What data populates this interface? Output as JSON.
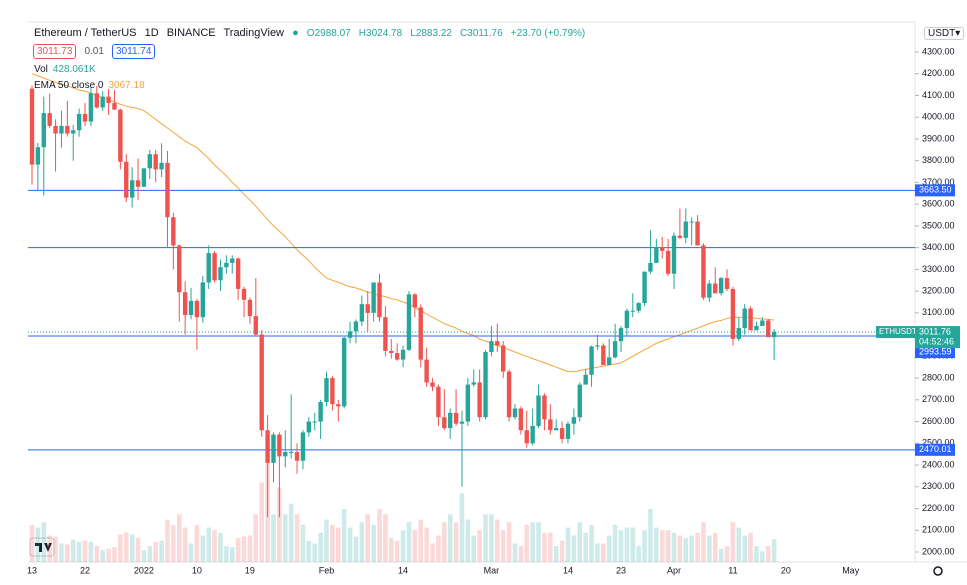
{
  "header": {
    "symbol": "Ethereum / TetherUS",
    "interval": "1D",
    "exchange": "BINANCE",
    "source": "TradingView",
    "ohlc_labels": [
      "O",
      "H",
      "L",
      "C"
    ],
    "change": "+23.70 (+0.79%)",
    "bid": "3011.73",
    "spread": "0.01",
    "ask": "3011.74",
    "volume_label": "Vol",
    "volume_value_label": "428.061K",
    "currency": "USDT"
  },
  "chart_data": {
    "type": "candlestick",
    "categories": [
      "13",
      null,
      null,
      null,
      null,
      null,
      null,
      null,
      null,
      "22",
      null,
      null,
      null,
      null,
      null,
      null,
      null,
      null,
      null,
      "2022",
      null,
      null,
      null,
      null,
      null,
      null,
      null,
      null,
      "10",
      null,
      null,
      null,
      null,
      null,
      null,
      null,
      null,
      "19",
      null,
      null,
      null,
      null,
      null,
      null,
      null,
      null,
      null,
      null,
      null,
      null,
      "Feb",
      null,
      null,
      null,
      null,
      null,
      null,
      null,
      null,
      null,
      null,
      null,
      null,
      "14",
      null,
      null,
      null,
      null,
      null,
      null,
      null,
      null,
      null,
      null,
      null,
      null,
      null,
      null,
      "Mar",
      null,
      null,
      null,
      null,
      null,
      null,
      null,
      null,
      null,
      null,
      null,
      null,
      "14",
      null,
      null,
      null,
      null,
      null,
      null,
      null,
      null,
      "23",
      null,
      null,
      null,
      null,
      null,
      null,
      null,
      null,
      "Apr",
      null,
      null,
      null,
      null,
      null,
      null,
      null,
      null,
      null,
      "11",
      null,
      null,
      null,
      null,
      null,
      null,
      null,
      null,
      "20",
      null,
      null,
      null,
      null,
      null,
      null,
      null,
      null,
      null,
      null,
      "May"
    ],
    "open": [
      4131,
      3782,
      3862,
      4019,
      3960,
      3925,
      3960,
      3925,
      3940,
      4015,
      3980,
      4110,
      4045,
      4095,
      4065,
      4035,
      3795,
      3630,
      3710,
      3680,
      3765,
      3830,
      3760,
      3790,
      3540,
      3410,
      3195,
      3090,
      3155,
      3080,
      3240,
      3375,
      3250,
      3310,
      3330,
      3350,
      3210,
      3160,
      3085,
      3000,
      2560,
      2410,
      2540,
      2440,
      2460,
      2460,
      2420,
      2550,
      2600,
      2600,
      2690,
      2800,
      2680,
      2670,
      2985,
      3015,
      3060,
      3140,
      3100,
      3240,
      3080,
      2925,
      2915,
      2885,
      2930,
      3185,
      3125,
      2885,
      2780,
      2760,
      2620,
      2570,
      2640,
      2590,
      2600,
      2770,
      2780,
      2620,
      2920,
      2970,
      2950,
      2830,
      2620,
      2660,
      2560,
      2500,
      2580,
      2720,
      2610,
      2560,
      2570,
      2520,
      2590,
      2620,
      2770,
      2815,
      2945,
      2950,
      2860,
      2895,
      2970,
      3030,
      3110,
      3110,
      3145,
      3290,
      3330,
      3400,
      3385,
      3280,
      3455,
      3445,
      3520,
      3520,
      3410,
      3170,
      3235,
      3190,
      3260,
      3210,
      2980,
      3030,
      3120,
      3020,
      3040,
      3065,
      2988.07,
      null,
      null,
      null,
      null,
      null,
      null,
      null,
      null,
      null,
      null,
      null,
      null,
      null
    ],
    "high": [
      4146,
      3882,
      4095,
      4109,
      3990,
      4030,
      4075,
      3965,
      4040,
      4065,
      4140,
      4145,
      4120,
      4130,
      4125,
      4040,
      3830,
      3770,
      3810,
      3760,
      3850,
      3850,
      3880,
      3845,
      3560,
      3415,
      3245,
      3215,
      3165,
      3270,
      3410,
      3385,
      3345,
      3365,
      3365,
      3355,
      3220,
      3170,
      3260,
      3020,
      2630,
      2550,
      2550,
      2560,
      2725,
      2500,
      2560,
      2620,
      2640,
      2700,
      2830,
      2810,
      2700,
      2990,
      3060,
      3070,
      3180,
      3200,
      3240,
      3280,
      3130,
      2980,
      2960,
      2950,
      3200,
      3190,
      3140,
      2940,
      2800,
      2770,
      2750,
      2660,
      2750,
      2650,
      2800,
      2840,
      2840,
      2930,
      3040,
      3050,
      2970,
      2840,
      2680,
      2670,
      2650,
      2660,
      2770,
      2730,
      2680,
      2610,
      2600,
      2600,
      2660,
      2780,
      2840,
      2950,
      3000,
      2960,
      2980,
      3050,
      3040,
      3120,
      3190,
      3150,
      3290,
      3480,
      3440,
      3450,
      3440,
      3470,
      3580,
      3580,
      3540,
      3550,
      3420,
      3250,
      3310,
      3265,
      3300,
      3220,
      3080,
      3140,
      3130,
      3060,
      3080,
      3070,
      3024.78,
      null,
      null,
      null,
      null,
      null,
      null,
      null,
      null,
      null,
      null,
      null,
      null,
      null
    ],
    "low": [
      3690,
      3660,
      3640,
      3950,
      3750,
      3860,
      3911,
      3800,
      3910,
      3960,
      3960,
      4040,
      4030,
      4010,
      4035,
      3760,
      3610,
      3585,
      3620,
      3680,
      3715,
      3700,
      3725,
      3400,
      3300,
      3060,
      3000,
      3070,
      2930,
      3055,
      3210,
      3240,
      3200,
      3280,
      3280,
      3160,
      3080,
      3050,
      2990,
      2530,
      2160,
      2320,
      2160,
      2390,
      2430,
      2360,
      2380,
      2530,
      2560,
      2520,
      2670,
      2650,
      2600,
      2660,
      2960,
      2960,
      3040,
      3010,
      3060,
      3060,
      2900,
      2890,
      2880,
      2850,
      2925,
      3080,
      2850,
      2760,
      2740,
      2580,
      2560,
      2520,
      2580,
      2300,
      2580,
      2760,
      2600,
      2610,
      2900,
      2920,
      2800,
      2600,
      2610,
      2540,
      2480,
      2490,
      2570,
      2560,
      2540,
      2560,
      2500,
      2500,
      2540,
      2600,
      2770,
      2760,
      2930,
      2860,
      2860,
      2890,
      2920,
      2990,
      3080,
      3100,
      3130,
      3280,
      3330,
      3350,
      3270,
      3210,
      3440,
      3420,
      3410,
      3410,
      3160,
      3150,
      3190,
      3180,
      3200,
      2950,
      2970,
      3000,
      3020,
      3020,
      3040,
      3000,
      2883.22,
      null,
      null,
      null,
      null,
      null,
      null,
      null,
      null,
      null,
      null,
      null,
      null,
      null
    ],
    "close": [
      3782,
      3862,
      4019,
      3960,
      3925,
      3960,
      3925,
      3940,
      4015,
      3980,
      4110,
      4045,
      4095,
      4065,
      4035,
      3795,
      3630,
      3710,
      3680,
      3765,
      3830,
      3760,
      3790,
      3540,
      3410,
      3195,
      3090,
      3155,
      3080,
      3240,
      3375,
      3250,
      3310,
      3330,
      3350,
      3210,
      3160,
      3085,
      3000,
      2560,
      2410,
      2540,
      2440,
      2460,
      2460,
      2420,
      2550,
      2600,
      2600,
      2690,
      2800,
      2680,
      2670,
      2985,
      3015,
      3060,
      3140,
      3100,
      3240,
      3080,
      2925,
      2915,
      2885,
      2930,
      3185,
      3125,
      2885,
      2780,
      2760,
      2620,
      2570,
      2640,
      2590,
      2600,
      2770,
      2780,
      2620,
      2920,
      2970,
      2950,
      2830,
      2620,
      2660,
      2560,
      2500,
      2580,
      2720,
      2610,
      2560,
      2570,
      2520,
      2590,
      2620,
      2770,
      2815,
      2945,
      2950,
      2860,
      2895,
      2970,
      3030,
      3110,
      3110,
      3145,
      3290,
      3330,
      3400,
      3385,
      3280,
      3455,
      3445,
      3520,
      3520,
      3410,
      3170,
      3235,
      3190,
      3260,
      3210,
      2980,
      3030,
      3120,
      3020,
      3040,
      3065,
      2988,
      3011.76,
      null,
      null,
      null,
      null,
      null,
      null,
      null,
      null,
      null,
      null,
      null,
      null,
      null
    ],
    "volume": [
      700000,
      650000,
      750000,
      500000,
      480000,
      350000,
      330000,
      420000,
      380000,
      400000,
      380000,
      300000,
      230000,
      250000,
      280000,
      520000,
      560000,
      520000,
      450000,
      220000,
      300000,
      380000,
      400000,
      800000,
      700000,
      900000,
      650000,
      350000,
      700000,
      500000,
      650000,
      600000,
      550000,
      300000,
      280000,
      450000,
      480000,
      500000,
      900000,
      1500000,
      1900000,
      900000,
      1400000,
      900000,
      1100000,
      900000,
      700000,
      400000,
      350000,
      550000,
      800000,
      700000,
      650000,
      1000000,
      650000,
      480000,
      750000,
      900000,
      700000,
      1000000,
      900000,
      450000,
      400000,
      600000,
      750000,
      600000,
      800000,
      650000,
      350000,
      500000,
      750000,
      900000,
      750000,
      1300000,
      800000,
      500000,
      600000,
      900000,
      900000,
      800000,
      600000,
      750000,
      350000,
      300000,
      700000,
      750000,
      750000,
      550000,
      550000,
      300000,
      400000,
      650000,
      500000,
      750000,
      550000,
      700000,
      350000,
      350000,
      500000,
      700000,
      600000,
      650000,
      650000,
      300000,
      600000,
      1000000,
      650000,
      600000,
      600000,
      550000,
      500000,
      450000,
      500000,
      550000,
      750000,
      500000,
      550000,
      250000,
      300000,
      750000,
      650000,
      500000,
      550000,
      300000,
      200000,
      300000,
      428061,
      null,
      null,
      null,
      null,
      null,
      null,
      null,
      null,
      null,
      null,
      null,
      null,
      null
    ],
    "ema": {
      "name": "EMA 50 close 0",
      "color": "#f7a43a",
      "values": [
        4200,
        4190,
        4180,
        4170,
        4160,
        4150,
        4145,
        4135,
        4125,
        4120,
        4110,
        4100,
        4090,
        4080,
        4070,
        4060,
        4050,
        4045,
        4040,
        4030,
        4010,
        3990,
        3970,
        3950,
        3930,
        3910,
        3890,
        3875,
        3860,
        3835,
        3810,
        3780,
        3755,
        3730,
        3700,
        3675,
        3645,
        3620,
        3590,
        3560,
        3530,
        3500,
        3475,
        3450,
        3420,
        3390,
        3365,
        3340,
        3310,
        3285,
        3260,
        3250,
        3240,
        3230,
        3220,
        3215,
        3205,
        3195,
        3190,
        3180,
        3175,
        3165,
        3160,
        3150,
        3140,
        3125,
        3110,
        3095,
        3080,
        3065,
        3050,
        3040,
        3030,
        3015,
        3005,
        2995,
        2980,
        2970,
        2960,
        2950,
        2940,
        2930,
        2920,
        2910,
        2900,
        2890,
        2880,
        2870,
        2860,
        2850,
        2840,
        2830,
        2830,
        2835,
        2840,
        2845,
        2850,
        2855,
        2860,
        2865,
        2870,
        2885,
        2900,
        2915,
        2930,
        2945,
        2960,
        2970,
        2980,
        2990,
        3000,
        3010,
        3020,
        3030,
        3040,
        3050,
        3060,
        3065,
        3075,
        3080,
        3080,
        3080,
        3078,
        3075,
        3072,
        3070,
        3067.18,
        null,
        null,
        null,
        null,
        null,
        null,
        null,
        null,
        null,
        null,
        null,
        null,
        null
      ]
    },
    "ylim": [
      1954,
      4438
    ],
    "yticks": [
      {
        "value": 2000,
        "label": "2000.00"
      },
      {
        "value": 2100,
        "label": "2100.00"
      },
      {
        "value": 2200,
        "label": "2200.00"
      },
      {
        "value": 2300,
        "label": "2300.00"
      },
      {
        "value": 2400,
        "label": "2400.00"
      },
      {
        "value": 2500,
        "label": "2500.00"
      },
      {
        "value": 2600,
        "label": "2600.00"
      },
      {
        "value": 2700,
        "label": "2700.00"
      },
      {
        "value": 2800,
        "label": "2800.00"
      },
      {
        "value": 2900,
        "label": "2900.00"
      },
      {
        "value": 3000,
        "label": "3000.00"
      },
      {
        "value": 3100,
        "label": "3100.00"
      },
      {
        "value": 3200,
        "label": "3200.00"
      },
      {
        "value": 3300,
        "label": "3300.00"
      },
      {
        "value": 3400,
        "label": "3400.00"
      },
      {
        "value": 3500,
        "label": "3500.00"
      },
      {
        "value": 3600,
        "label": "3600.00"
      },
      {
        "value": 3700,
        "label": "3700.00"
      },
      {
        "value": 3800,
        "label": "3800.00"
      },
      {
        "value": 3900,
        "label": "3900.00"
      },
      {
        "value": 4000,
        "label": "4000.00"
      },
      {
        "value": 4100,
        "label": "4100.00"
      },
      {
        "value": 4200,
        "label": "4200.00"
      },
      {
        "value": 4300,
        "label": "4300.00"
      }
    ],
    "colors": {
      "up": "#26a69a",
      "down": "#ef5350",
      "hline": "#2962ff"
    },
    "hlines": [
      {
        "value": 3663.5,
        "label": "3663.50"
      },
      {
        "value": 3400
      },
      {
        "value": 2993.59,
        "label": "2993.59"
      },
      {
        "value": 2470.01,
        "label": "2470.01"
      }
    ],
    "last_price": {
      "symbol": "ETHUSDT",
      "countdown": "04:52:46"
    }
  }
}
